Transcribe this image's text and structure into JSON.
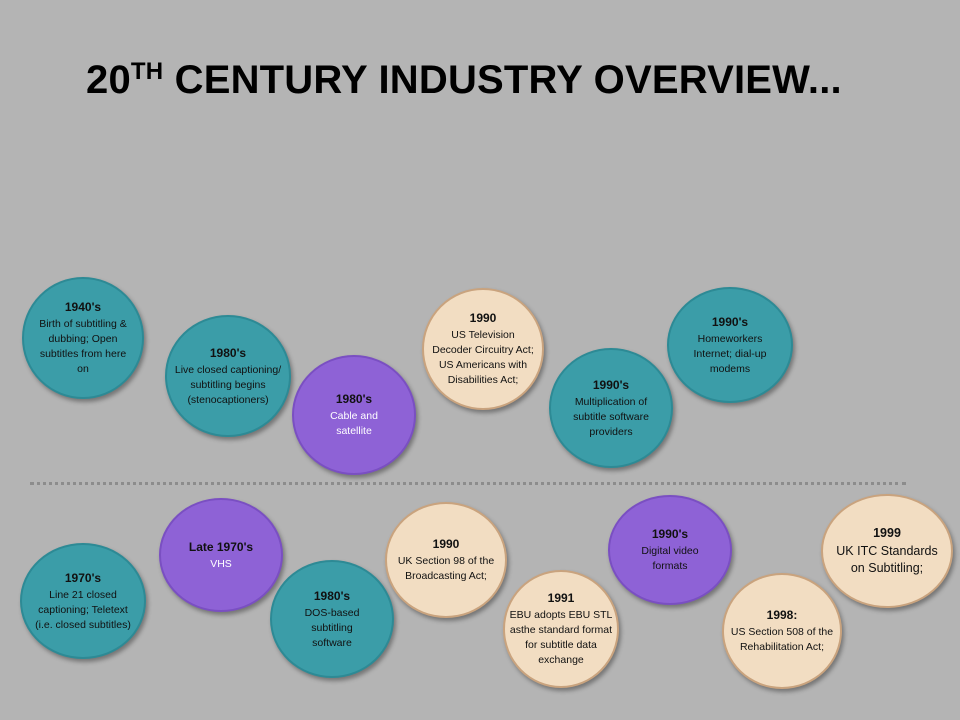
{
  "title": {
    "main": "20",
    "sup": "TH",
    "rest": " CENTURY INDUSTRY OVERVIEW..."
  },
  "top_row": [
    {
      "year": "1940's",
      "desc": "Birth of subtitling & dubbing; Open subtitles from here on"
    },
    {
      "year": "1980's",
      "desc": "Live closed captioning/ subtitling begins (stenocaptioners)"
    },
    {
      "year": "1980's",
      "desc": "Cable and satellite"
    },
    {
      "year": "1990",
      "desc": "US Television Decoder Circuitry Act; US Americans with Disabilities Act;"
    },
    {
      "year": "1990's",
      "desc": "Multiplication of subtitle software providers"
    },
    {
      "year": "1990's",
      "desc": "Homeworkers Internet; dial-up modems"
    }
  ],
  "bottom_row": [
    {
      "year": "1970's",
      "desc": "Line 21 closed captioning; Teletext (i.e. closed subtitles)"
    },
    {
      "year": "Late 1970's",
      "desc": "VHS"
    },
    {
      "year": "1980's",
      "desc": "DOS-based subtitling software"
    },
    {
      "year": "1990",
      "desc": "UK Section 98 of the Broadcasting Act;"
    },
    {
      "year": "1991",
      "desc": "EBU adopts EBU STL asthe standard format for subtitle data exchange"
    },
    {
      "year": "1990's",
      "desc": "Digital video formats"
    },
    {
      "year": "1998:",
      "desc": "US Section 508 of the Rehabilitation Act;"
    },
    {
      "year": "1999",
      "desc": "UK ITC Standards on Subtitling;"
    }
  ]
}
